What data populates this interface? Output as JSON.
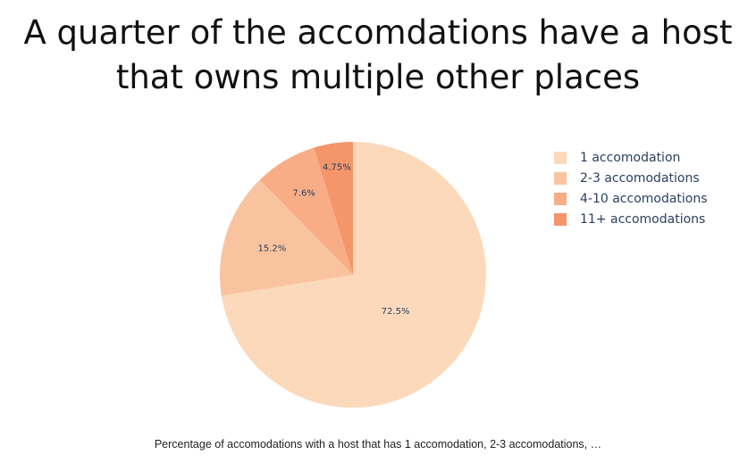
{
  "title": {
    "line1": "A quarter of the accomdations have a host",
    "line2": "that owns multiple other places"
  },
  "caption": "Percentage of accomodations with a host that has 1 accomodation, 2-3 accomodations, …",
  "chart_data": {
    "type": "pie",
    "direction": "clockwise",
    "start_angle": "top",
    "legend_position": "right",
    "categories": [
      "1 accomodation",
      "2-3 accomodations",
      "4-10 accomodations",
      "11+ accomodations"
    ],
    "values": [
      72.5,
      15.2,
      7.6,
      4.75
    ],
    "labels": [
      "72.5%",
      "15.2%",
      "7.6%",
      "4.75%"
    ],
    "colors": [
      "#fcd9bb",
      "#fac39f",
      "#f8ad86",
      "#f4956a"
    ]
  }
}
